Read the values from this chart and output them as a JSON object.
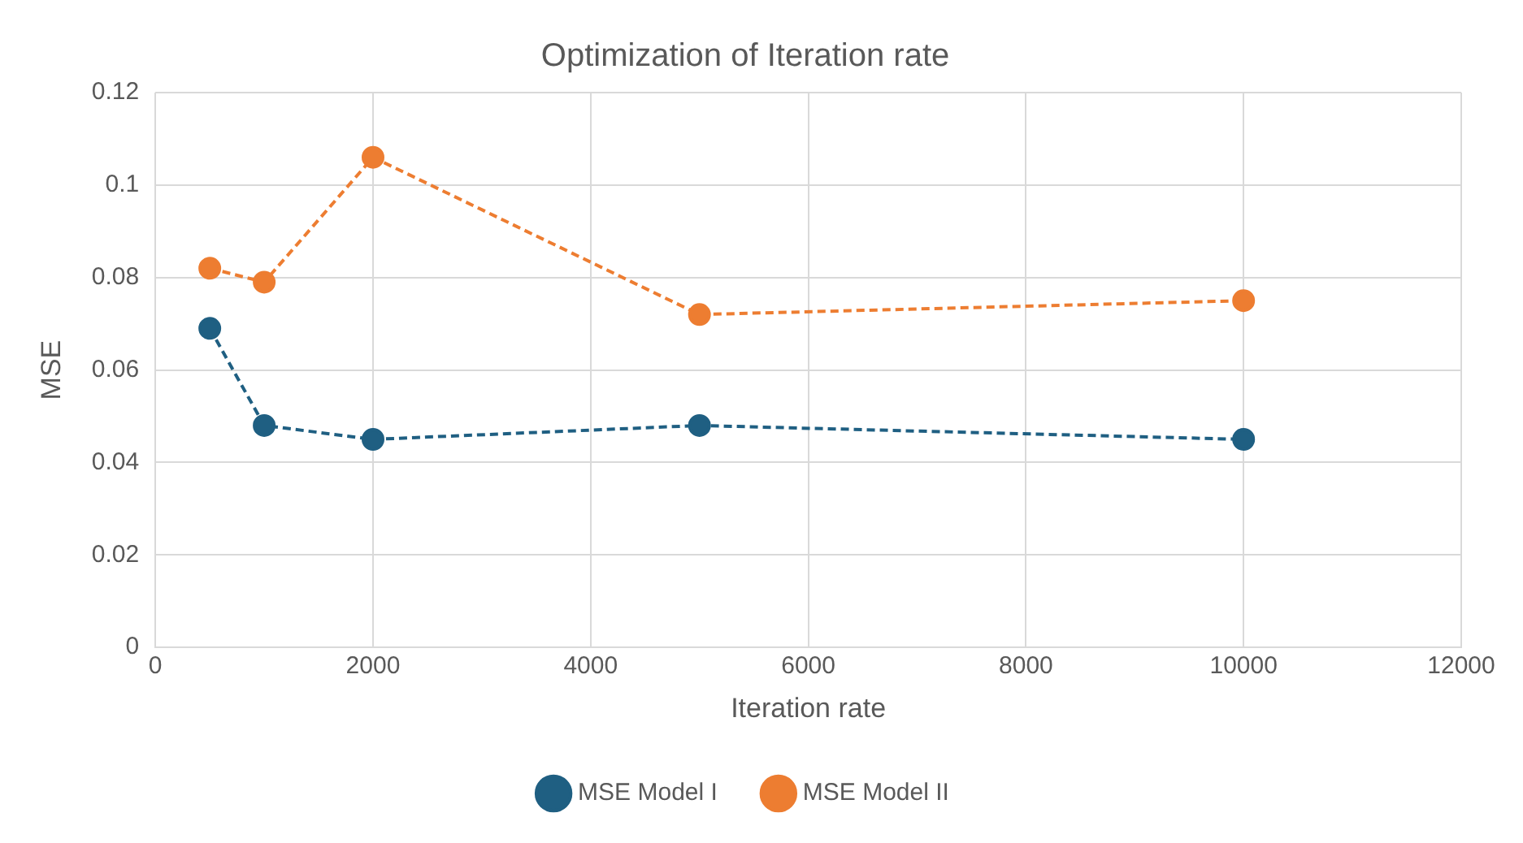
{
  "chart_data": {
    "type": "line",
    "title": "Optimization of Iteration rate",
    "xlabel": "Iteration rate",
    "ylabel": "MSE",
    "x": [
      500,
      1000,
      2000,
      5000,
      10000
    ],
    "series": [
      {
        "name": "MSE Model I",
        "color": "#1f5f82",
        "values": [
          0.069,
          0.048,
          0.045,
          0.048,
          0.045
        ]
      },
      {
        "name": "MSE Model II",
        "color": "#ed7d31",
        "values": [
          0.082,
          0.079,
          0.106,
          0.072,
          0.075
        ]
      }
    ],
    "xlim": [
      0,
      12000
    ],
    "xticks": [
      0,
      2000,
      4000,
      6000,
      8000,
      10000,
      12000
    ],
    "ylim": [
      0,
      0.12
    ],
    "yticks": [
      0,
      0.02,
      0.04,
      0.06,
      0.08,
      0.1,
      0.12
    ],
    "grid": true,
    "legend": "bottom",
    "marker": "circle",
    "line_style": "dashed"
  }
}
